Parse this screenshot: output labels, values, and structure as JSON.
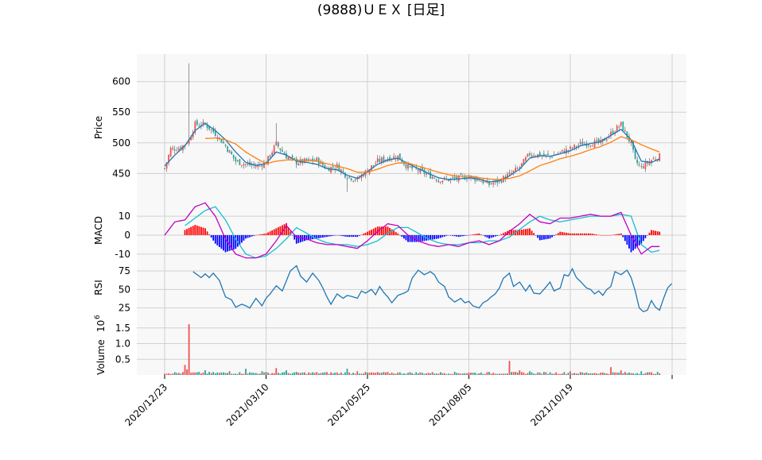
{
  "title": "(9888)ＵＥＸ [日足]",
  "colors": {
    "up": "#ef5350",
    "down": "#26a69a",
    "ma_short": "#1f77b4",
    "ma_long": "#ff7f0e",
    "macd_line": "#c000c0",
    "macd_signal": "#17becf",
    "hist_pos": "#ff0000",
    "hist_neg": "#0000ff",
    "rsi": "#1f77b4",
    "volume_up": "#ef5350",
    "volume_down": "#26a69a",
    "grid": "#d0d0d0",
    "panel_bg": "#f8f8f8"
  },
  "chart_data": {
    "type": "candlestick",
    "grid": true,
    "x_tick_labels": [
      "2020/12/23",
      "2021/03/10",
      "2021/05/25",
      "2021/08/05",
      "2021/10/19"
    ],
    "x_tick_index": [
      0,
      50,
      100,
      150,
      200
    ],
    "n_bars": 245,
    "price": {
      "ylabel": "Price",
      "yticks": [
        450,
        500,
        550,
        600
      ],
      "ylim": [
        405,
        645
      ],
      "close_keypoints": [
        [
          0,
          458
        ],
        [
          3,
          490
        ],
        [
          8,
          492
        ],
        [
          12,
          505
        ],
        [
          15,
          530
        ],
        [
          20,
          530
        ],
        [
          25,
          515
        ],
        [
          30,
          495
        ],
        [
          35,
          470
        ],
        [
          40,
          465
        ],
        [
          45,
          462
        ],
        [
          50,
          468
        ],
        [
          55,
          498
        ],
        [
          60,
          478
        ],
        [
          65,
          468
        ],
        [
          70,
          470
        ],
        [
          75,
          472
        ],
        [
          80,
          458
        ],
        [
          85,
          462
        ],
        [
          90,
          445
        ],
        [
          95,
          440
        ],
        [
          100,
          455
        ],
        [
          105,
          470
        ],
        [
          110,
          475
        ],
        [
          115,
          478
        ],
        [
          120,
          460
        ],
        [
          125,
          455
        ],
        [
          130,
          448
        ],
        [
          135,
          440
        ],
        [
          140,
          440
        ],
        [
          145,
          442
        ],
        [
          150,
          445
        ],
        [
          155,
          440
        ],
        [
          160,
          432
        ],
        [
          165,
          438
        ],
        [
          170,
          448
        ],
        [
          175,
          460
        ],
        [
          180,
          482
        ],
        [
          185,
          480
        ],
        [
          190,
          478
        ],
        [
          195,
          484
        ],
        [
          200,
          490
        ],
        [
          205,
          498
        ],
        [
          210,
          500
        ],
        [
          215,
          500
        ],
        [
          220,
          515
        ],
        [
          225,
          530
        ],
        [
          230,
          498
        ],
        [
          232,
          470
        ],
        [
          235,
          460
        ],
        [
          240,
          472
        ],
        [
          244,
          478
        ]
      ],
      "ma_short_keypoints": [
        [
          0,
          462
        ],
        [
          5,
          480
        ],
        [
          10,
          495
        ],
        [
          15,
          520
        ],
        [
          20,
          532
        ],
        [
          25,
          520
        ],
        [
          30,
          505
        ],
        [
          35,
          485
        ],
        [
          40,
          468
        ],
        [
          45,
          463
        ],
        [
          50,
          466
        ],
        [
          55,
          485
        ],
        [
          60,
          480
        ],
        [
          65,
          470
        ],
        [
          70,
          468
        ],
        [
          75,
          465
        ],
        [
          80,
          458
        ],
        [
          85,
          456
        ],
        [
          90,
          447
        ],
        [
          95,
          442
        ],
        [
          100,
          453
        ],
        [
          105,
          465
        ],
        [
          110,
          472
        ],
        [
          115,
          475
        ],
        [
          120,
          466
        ],
        [
          125,
          458
        ],
        [
          130,
          450
        ],
        [
          135,
          443
        ],
        [
          140,
          440
        ],
        [
          145,
          441
        ],
        [
          150,
          443
        ],
        [
          155,
          441
        ],
        [
          160,
          436
        ],
        [
          165,
          438
        ],
        [
          170,
          446
        ],
        [
          175,
          457
        ],
        [
          180,
          475
        ],
        [
          185,
          479
        ],
        [
          190,
          478
        ],
        [
          195,
          482
        ],
        [
          200,
          487
        ],
        [
          205,
          495
        ],
        [
          210,
          499
        ],
        [
          215,
          502
        ],
        [
          220,
          512
        ],
        [
          225,
          522
        ],
        [
          230,
          505
        ],
        [
          235,
          470
        ],
        [
          240,
          468
        ],
        [
          244,
          474
        ]
      ],
      "ma_long_keypoints": [
        [
          20,
          507
        ],
        [
          25,
          508
        ],
        [
          30,
          505
        ],
        [
          35,
          498
        ],
        [
          40,
          485
        ],
        [
          45,
          475
        ],
        [
          50,
          466
        ],
        [
          55,
          470
        ],
        [
          60,
          472
        ],
        [
          65,
          472
        ],
        [
          70,
          471
        ],
        [
          75,
          470
        ],
        [
          80,
          466
        ],
        [
          85,
          462
        ],
        [
          90,
          458
        ],
        [
          95,
          452
        ],
        [
          100,
          452
        ],
        [
          105,
          457
        ],
        [
          110,
          463
        ],
        [
          115,
          467
        ],
        [
          120,
          467
        ],
        [
          125,
          462
        ],
        [
          130,
          457
        ],
        [
          135,
          452
        ],
        [
          140,
          448
        ],
        [
          145,
          445
        ],
        [
          150,
          446
        ],
        [
          155,
          443
        ],
        [
          160,
          441
        ],
        [
          165,
          440
        ],
        [
          170,
          442
        ],
        [
          175,
          446
        ],
        [
          180,
          454
        ],
        [
          185,
          463
        ],
        [
          190,
          468
        ],
        [
          195,
          474
        ],
        [
          200,
          478
        ],
        [
          205,
          483
        ],
        [
          210,
          489
        ],
        [
          215,
          494
        ],
        [
          220,
          501
        ],
        [
          225,
          510
        ],
        [
          230,
          505
        ],
        [
          235,
          497
        ],
        [
          240,
          490
        ],
        [
          244,
          485
        ]
      ]
    },
    "macd": {
      "ylabel": "MACD",
      "yticks": [
        -10,
        0,
        10
      ],
      "ylim": [
        -13,
        18
      ],
      "macd_keypoints": [
        [
          0,
          0
        ],
        [
          5,
          7
        ],
        [
          10,
          8
        ],
        [
          15,
          15
        ],
        [
          20,
          17
        ],
        [
          25,
          10
        ],
        [
          30,
          -2
        ],
        [
          35,
          -10
        ],
        [
          40,
          -12
        ],
        [
          45,
          -12
        ],
        [
          50,
          -10
        ],
        [
          55,
          -3
        ],
        [
          60,
          5
        ],
        [
          65,
          -1
        ],
        [
          70,
          -2
        ],
        [
          75,
          -4
        ],
        [
          80,
          -5
        ],
        [
          85,
          -5
        ],
        [
          90,
          -6
        ],
        [
          95,
          -7
        ],
        [
          100,
          -3
        ],
        [
          105,
          2
        ],
        [
          110,
          6
        ],
        [
          115,
          5
        ],
        [
          120,
          0
        ],
        [
          125,
          -3
        ],
        [
          130,
          -5
        ],
        [
          135,
          -6
        ],
        [
          140,
          -5
        ],
        [
          145,
          -6
        ],
        [
          150,
          -4
        ],
        [
          155,
          -3
        ],
        [
          160,
          -5
        ],
        [
          165,
          -3
        ],
        [
          170,
          2
        ],
        [
          175,
          6
        ],
        [
          180,
          11
        ],
        [
          185,
          7
        ],
        [
          190,
          6
        ],
        [
          195,
          9
        ],
        [
          200,
          9
        ],
        [
          205,
          10
        ],
        [
          210,
          11
        ],
        [
          215,
          10
        ],
        [
          220,
          10
        ],
        [
          225,
          12
        ],
        [
          230,
          0
        ],
        [
          235,
          -10
        ],
        [
          240,
          -6
        ],
        [
          244,
          -6
        ]
      ],
      "signal_keypoints": [
        [
          10,
          5
        ],
        [
          15,
          9
        ],
        [
          20,
          13
        ],
        [
          25,
          15
        ],
        [
          30,
          8
        ],
        [
          35,
          -2
        ],
        [
          40,
          -10
        ],
        [
          45,
          -12
        ],
        [
          50,
          -11
        ],
        [
          55,
          -7
        ],
        [
          60,
          -2
        ],
        [
          65,
          4
        ],
        [
          70,
          1
        ],
        [
          75,
          -2
        ],
        [
          80,
          -4
        ],
        [
          85,
          -5
        ],
        [
          90,
          -5
        ],
        [
          95,
          -6
        ],
        [
          100,
          -5
        ],
        [
          105,
          -3
        ],
        [
          110,
          1
        ],
        [
          115,
          4
        ],
        [
          120,
          4
        ],
        [
          125,
          1
        ],
        [
          130,
          -2
        ],
        [
          135,
          -4
        ],
        [
          140,
          -5
        ],
        [
          145,
          -5
        ],
        [
          150,
          -4
        ],
        [
          155,
          -4
        ],
        [
          160,
          -3
        ],
        [
          165,
          -3
        ],
        [
          170,
          -1
        ],
        [
          175,
          3
        ],
        [
          180,
          7
        ],
        [
          185,
          10
        ],
        [
          190,
          8
        ],
        [
          195,
          7
        ],
        [
          200,
          8
        ],
        [
          205,
          9
        ],
        [
          210,
          10
        ],
        [
          215,
          10
        ],
        [
          220,
          10
        ],
        [
          225,
          11
        ],
        [
          230,
          10
        ],
        [
          235,
          -5
        ],
        [
          240,
          -9
        ],
        [
          244,
          -8
        ]
      ]
    },
    "rsi": {
      "ylabel": "RSI",
      "yticks": [
        25,
        50,
        75
      ],
      "ylim": [
        15,
        90
      ],
      "keypoints": [
        [
          14,
          74
        ],
        [
          18,
          66
        ],
        [
          20,
          71
        ],
        [
          22,
          66
        ],
        [
          24,
          72
        ],
        [
          27,
          62
        ],
        [
          30,
          40
        ],
        [
          33,
          36
        ],
        [
          35,
          26
        ],
        [
          38,
          30
        ],
        [
          40,
          28
        ],
        [
          42,
          25
        ],
        [
          45,
          38
        ],
        [
          48,
          28
        ],
        [
          50,
          38
        ],
        [
          52,
          44
        ],
        [
          55,
          55
        ],
        [
          58,
          48
        ],
        [
          62,
          75
        ],
        [
          65,
          82
        ],
        [
          67,
          68
        ],
        [
          70,
          60
        ],
        [
          73,
          72
        ],
        [
          76,
          62
        ],
        [
          78,
          52
        ],
        [
          80,
          40
        ],
        [
          82,
          30
        ],
        [
          85,
          44
        ],
        [
          88,
          38
        ],
        [
          90,
          42
        ],
        [
          93,
          40
        ],
        [
          95,
          38
        ],
        [
          97,
          48
        ],
        [
          99,
          45
        ],
        [
          102,
          50
        ],
        [
          104,
          43
        ],
        [
          106,
          54
        ],
        [
          108,
          46
        ],
        [
          110,
          40
        ],
        [
          112,
          32
        ],
        [
          115,
          42
        ],
        [
          118,
          45
        ],
        [
          120,
          48
        ],
        [
          122,
          65
        ],
        [
          125,
          76
        ],
        [
          128,
          70
        ],
        [
          131,
          74
        ],
        [
          133,
          70
        ],
        [
          135,
          60
        ],
        [
          138,
          54
        ],
        [
          140,
          40
        ],
        [
          143,
          33
        ],
        [
          146,
          38
        ],
        [
          148,
          32
        ],
        [
          150,
          34
        ],
        [
          152,
          28
        ],
        [
          155,
          25
        ],
        [
          157,
          32
        ],
        [
          159,
          35
        ],
        [
          161,
          40
        ],
        [
          163,
          44
        ],
        [
          165,
          52
        ],
        [
          167,
          65
        ],
        [
          170,
          72
        ],
        [
          172,
          54
        ],
        [
          175,
          60
        ],
        [
          178,
          48
        ],
        [
          180,
          56
        ],
        [
          182,
          45
        ],
        [
          185,
          44
        ],
        [
          187,
          50
        ],
        [
          190,
          60
        ],
        [
          192,
          48
        ],
        [
          195,
          52
        ],
        [
          197,
          70
        ],
        [
          199,
          68
        ],
        [
          201,
          78
        ],
        [
          203,
          66
        ],
        [
          206,
          58
        ],
        [
          208,
          52
        ],
        [
          210,
          50
        ],
        [
          212,
          44
        ],
        [
          214,
          48
        ],
        [
          216,
          42
        ],
        [
          218,
          50
        ],
        [
          220,
          54
        ],
        [
          222,
          74
        ],
        [
          225,
          70
        ],
        [
          228,
          76
        ],
        [
          230,
          66
        ],
        [
          232,
          48
        ],
        [
          234,
          25
        ],
        [
          236,
          20
        ],
        [
          238,
          22
        ],
        [
          240,
          35
        ],
        [
          242,
          26
        ],
        [
          244,
          22
        ],
        [
          246,
          38
        ],
        [
          248,
          52
        ],
        [
          250,
          58
        ]
      ]
    },
    "volume": {
      "ylabel": "Volume",
      "exponent_label": "10",
      "exponent_power": "6",
      "yticks": [
        0.5,
        1.0,
        1.5
      ],
      "ytick_labels": [
        "0.5",
        "1.0",
        "1.5"
      ],
      "ylim": [
        0,
        1.9
      ],
      "spikes": [
        [
          12,
          1.62
        ],
        [
          10,
          0.32
        ],
        [
          11,
          0.18
        ],
        [
          20,
          0.15
        ],
        [
          32,
          0.12
        ],
        [
          40,
          0.2
        ],
        [
          48,
          0.12
        ],
        [
          55,
          0.22
        ],
        [
          60,
          0.15
        ],
        [
          90,
          0.2
        ],
        [
          95,
          0.12
        ],
        [
          150,
          0.08
        ],
        [
          170,
          0.45
        ],
        [
          175,
          0.15
        ],
        [
          180,
          0.12
        ],
        [
          200,
          0.12
        ],
        [
          220,
          0.25
        ],
        [
          225,
          0.15
        ],
        [
          235,
          0.12
        ]
      ]
    }
  }
}
